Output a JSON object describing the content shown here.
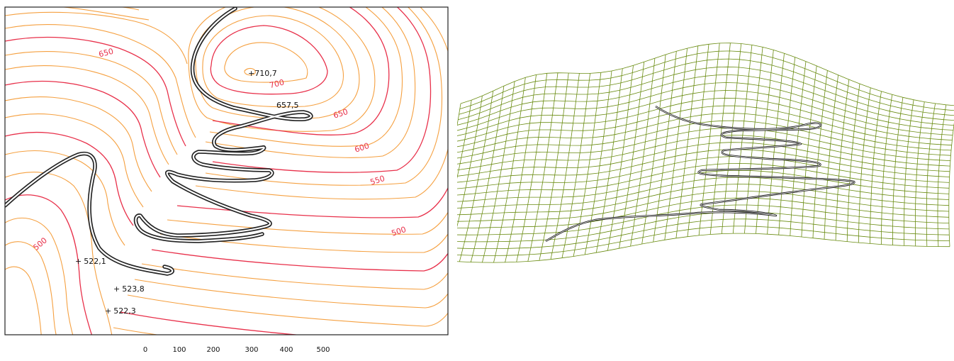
{
  "contour_map": {
    "contour_labels": [
      "650",
      "700",
      "650",
      "600",
      "550",
      "500",
      "500"
    ],
    "spot_heights": [
      {
        "label": "710,7"
      },
      {
        "label": "657,5"
      },
      {
        "label": "522,1"
      },
      {
        "label": "523,8"
      },
      {
        "label": "522,3"
      }
    ],
    "scale_ticks": [
      "0",
      "100",
      "200",
      "300",
      "400",
      "500"
    ],
    "colors": {
      "index_contour": "#e8304a",
      "intermediate_contour": "#f5a040",
      "road": "#222222"
    }
  },
  "mesh_view": {
    "colors": {
      "mesh": "#6a8c12",
      "road": "#111111"
    }
  }
}
